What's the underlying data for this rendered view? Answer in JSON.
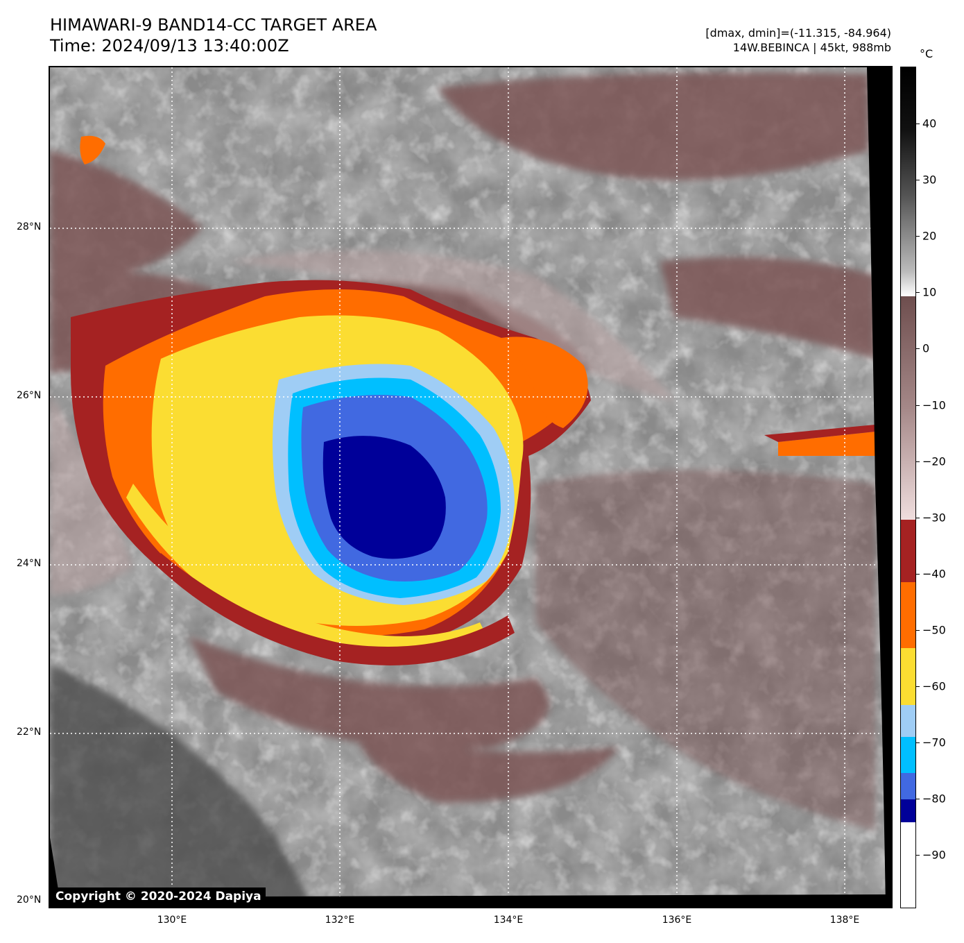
{
  "header": {
    "title_line1": "HIMAWARI-9 BAND14-CC TARGET AREA",
    "title_line2": "Time: 2024/09/13 13:40:00Z",
    "range_text": "[dmax, dmin]=(-11.315, -84.964)",
    "storm_text": "14W.BEBINCA | 45kt, 988mb"
  },
  "map": {
    "copyright": "Copyright © 2020-2024 Dapiya",
    "lat_labels": [
      "28°N",
      "26°N",
      "24°N",
      "22°N",
      "20°N"
    ],
    "lon_labels": [
      "130°E",
      "132°E",
      "134°E",
      "136°E",
      "138°E"
    ]
  },
  "colorbar": {
    "unit": "°C",
    "ticks": [
      "40",
      "30",
      "20",
      "10",
      "0",
      "−10",
      "−20",
      "−30",
      "−40",
      "−50",
      "−60",
      "−70",
      "−80",
      "−90"
    ],
    "bands": [
      {
        "color": "#ffffff",
        "from": -100,
        "to": -85
      },
      {
        "color": "#000099",
        "from": -85,
        "to": -81
      },
      {
        "color": "#4169e1",
        "from": -81,
        "to": -76
      },
      {
        "color": "#00bfff",
        "from": -76,
        "to": -70
      },
      {
        "color": "#9fcdf5",
        "from": -70,
        "to": -64
      },
      {
        "color": "#fbdd32",
        "from": -64,
        "to": -54
      },
      {
        "color": "#ff6d00",
        "from": -54,
        "to": -42
      },
      {
        "color": "#a52222",
        "from": -42,
        "to": -31
      }
    ],
    "colors": {
      "warm_white": "#ffffff",
      "warm_gray": "#000000",
      "brown_light": "#f0dede",
      "brown_dark": "#6e4e4e"
    }
  }
}
